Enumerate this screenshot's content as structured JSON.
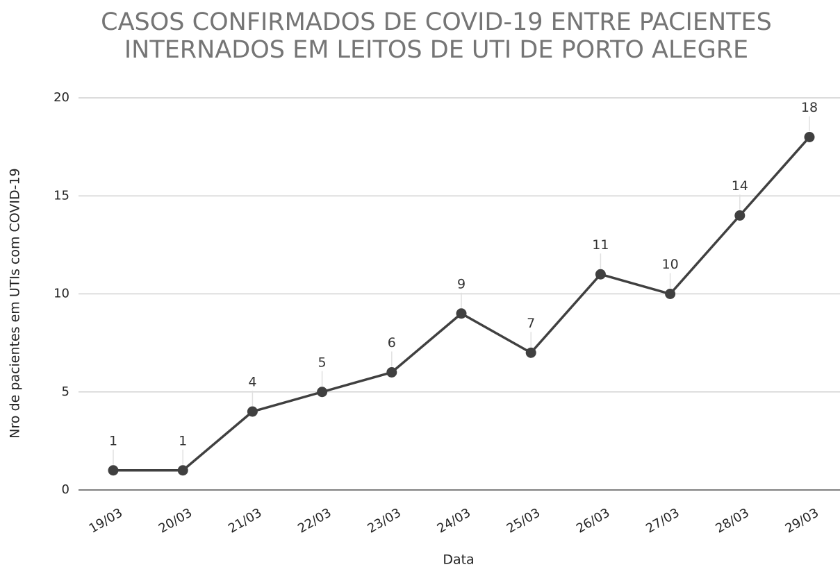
{
  "chart_data": {
    "type": "line",
    "title": [
      "CASOS CONFIRMADOS DE COVID-19 ENTRE PACIENTES",
      "INTERNADOS EM LEITOS DE UTI DE PORTO ALEGRE"
    ],
    "x_label": "Data",
    "y_label": "Nro de pacientes em UTIs com COVID-19",
    "categories": [
      "19/03",
      "20/03",
      "21/03",
      "22/03",
      "23/03",
      "24/03",
      "25/03",
      "26/03",
      "27/03",
      "28/03",
      "29/03"
    ],
    "series": [
      {
        "name": "Nro de pacientes em UTIs com COVID-19",
        "color": "#404040",
        "values": [
          1,
          1,
          4,
          5,
          6,
          9,
          7,
          11,
          10,
          14,
          18
        ]
      }
    ],
    "ylim": [
      0,
      20
    ],
    "yticks": [
      0,
      5,
      10,
      15,
      20
    ],
    "grid": true
  }
}
